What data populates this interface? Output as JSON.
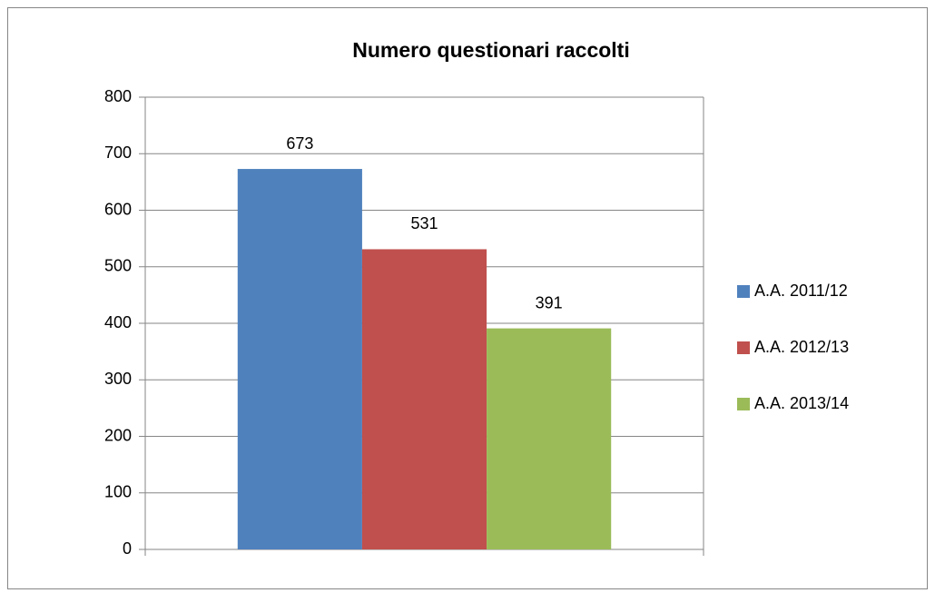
{
  "chart_data": {
    "type": "bar",
    "title": "Numero questionari raccolti",
    "categories": [
      null
    ],
    "series": [
      {
        "name": "A.A. 2011/12",
        "color": "#4f81bd",
        "values": [
          673
        ]
      },
      {
        "name": "A.A. 2012/13",
        "color": "#c0504d",
        "values": [
          531
        ]
      },
      {
        "name": "A.A. 2013/14",
        "color": "#9bbb59",
        "values": [
          391
        ]
      }
    ],
    "ylim": [
      0,
      800
    ],
    "yticks": [
      0,
      100,
      200,
      300,
      400,
      500,
      600,
      700,
      800
    ],
    "grid": true,
    "legend": "right",
    "data_labels": true
  }
}
